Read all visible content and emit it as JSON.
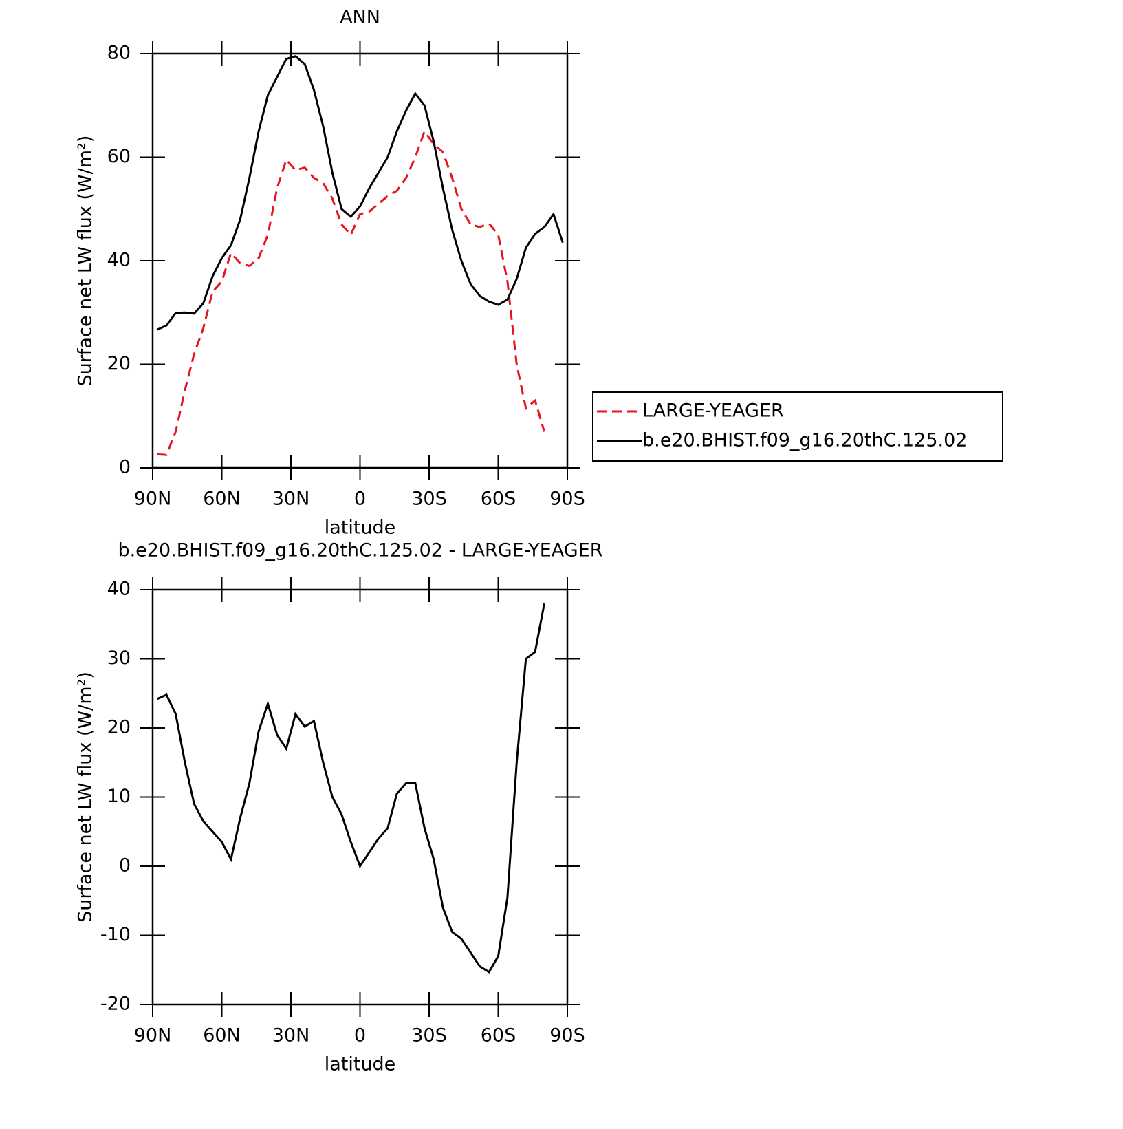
{
  "chart_data": [
    {
      "type": "line",
      "title": "ANN",
      "xlabel": "latitude",
      "ylabel": "Surface net LW flux (W/m²)",
      "x": [
        88,
        84,
        80,
        76,
        72,
        68,
        64,
        60,
        56,
        52,
        48,
        44,
        40,
        36,
        32,
        28,
        24,
        20,
        16,
        12,
        8,
        4,
        0,
        -4,
        -8,
        -12,
        -16,
        -20,
        -24,
        -28,
        -32,
        -36,
        -40,
        -44,
        -48,
        -52,
        -56,
        -60,
        -64,
        -68,
        -72,
        -76,
        -80,
        -84,
        -88
      ],
      "xlim": [
        90,
        -90
      ],
      "xticks": [
        {
          "value": 90,
          "label": "90N"
        },
        {
          "value": 60,
          "label": "60N"
        },
        {
          "value": 30,
          "label": "30N"
        },
        0,
        {
          "value": -30,
          "label": "30S"
        },
        {
          "value": -60,
          "label": "60S"
        },
        {
          "value": -90,
          "label": "90S"
        }
      ],
      "ylim": [
        0,
        80
      ],
      "yticks": [
        0,
        20,
        40,
        60,
        80
      ],
      "legend": "right",
      "series": [
        {
          "name": "LARGE-YEAGER",
          "color": "#e8141c",
          "dash": true,
          "values": [
            2.6,
            2.5,
            7,
            15,
            22,
            27,
            34,
            36,
            41.5,
            39.5,
            39,
            40.5,
            45,
            54,
            59.5,
            57.5,
            58,
            56,
            55,
            52,
            47,
            45,
            49,
            49.5,
            51,
            52.5,
            53.5,
            56,
            60,
            65,
            62.5,
            61,
            56,
            50,
            47,
            46.5,
            47.2,
            45,
            36,
            20,
            11.5,
            13,
            7,
            null,
            null
          ]
        },
        {
          "name": "b.e20.BHIST.f09_g16.20thC.125.02",
          "color": "#000000",
          "dash": false,
          "values": [
            26.7,
            27.5,
            29.9,
            30,
            29.8,
            31.8,
            37,
            40.5,
            43,
            48,
            56,
            65,
            72,
            75.5,
            79,
            79.5,
            78,
            73,
            66,
            57,
            50,
            48.5,
            50.5,
            54,
            57,
            60,
            65,
            69,
            72.3,
            70,
            63,
            54,
            46,
            40,
            35.5,
            33.2,
            32.1,
            31.5,
            32.5,
            36.5,
            42.5,
            45.2,
            46.5,
            49,
            43.5
          ]
        }
      ]
    },
    {
      "type": "line",
      "title": "b.e20.BHIST.f09_g16.20thC.125.02 - LARGE-YEAGER",
      "xlabel": "latitude",
      "ylabel": "Surface net LW flux (W/m²)",
      "x": [
        88,
        84,
        80,
        76,
        72,
        68,
        64,
        60,
        56,
        52,
        48,
        44,
        40,
        36,
        32,
        28,
        24,
        20,
        16,
        12,
        8,
        4,
        0,
        -4,
        -8,
        -12,
        -16,
        -20,
        -24,
        -28,
        -32,
        -36,
        -40,
        -44,
        -48,
        -52,
        -56,
        -60,
        -64,
        -68,
        -72,
        -76,
        -80,
        -84,
        -88
      ],
      "xlim": [
        90,
        -90
      ],
      "xticks": [
        {
          "value": 90,
          "label": "90N"
        },
        {
          "value": 60,
          "label": "60N"
        },
        {
          "value": 30,
          "label": "30N"
        },
        0,
        {
          "value": -30,
          "label": "30S"
        },
        {
          "value": -60,
          "label": "60S"
        },
        {
          "value": -90,
          "label": "90S"
        }
      ],
      "ylim": [
        -20,
        40
      ],
      "yticks": [
        -20,
        -10,
        0,
        10,
        20,
        30,
        40
      ],
      "series": [
        {
          "color": "#000000",
          "dash": false,
          "values": [
            24.2,
            24.8,
            22,
            15,
            9,
            6.5,
            5,
            3.5,
            1,
            7,
            12,
            19.5,
            23.5,
            19,
            17,
            22,
            20.2,
            21,
            15,
            10,
            7.5,
            3.5,
            0,
            2,
            4,
            5.5,
            10.5,
            12,
            12,
            5.5,
            1,
            -6,
            -9.5,
            -10.5,
            -12.5,
            -14.5,
            -15.3,
            -13,
            -4.5,
            15,
            30,
            31,
            38,
            null,
            null
          ]
        }
      ]
    }
  ]
}
